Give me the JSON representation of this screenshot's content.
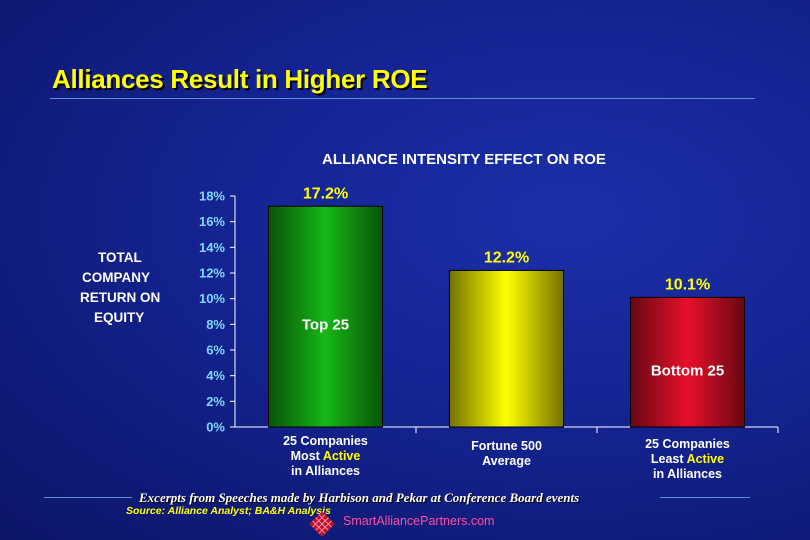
{
  "slide": {
    "title": "Alliances Result in Higher ROE",
    "excerpt": "Excerpts from Speeches made by Harbison and Pekar at Conference Board events",
    "source": "Source: Alliance Analyst; BA&H Analysis",
    "site": "SmartAlliancePartners.com"
  },
  "chart_data": {
    "type": "bar",
    "title": "ALLIANCE INTENSITY EFFECT ON ROE",
    "ylabel_lines": [
      "TOTAL",
      "COMPANY",
      "RETURN ON",
      "EQUITY"
    ],
    "xlabel": "",
    "ylim": [
      0,
      18
    ],
    "yticks": [
      "0%",
      "2%",
      "4%",
      "6%",
      "8%",
      "10%",
      "12%",
      "14%",
      "16%",
      "18%"
    ],
    "categories": [
      {
        "lines": [
          [
            "25 Companies"
          ],
          [
            "Most ",
            "Active"
          ],
          [
            "in Alliances"
          ]
        ]
      },
      {
        "lines": [
          [
            "Fortune 500"
          ],
          [
            "Average"
          ]
        ]
      },
      {
        "lines": [
          [
            "25 Companies"
          ],
          [
            "Least ",
            "Active"
          ],
          [
            "in Alliances"
          ]
        ]
      }
    ],
    "values": [
      17.2,
      12.2,
      10.1
    ],
    "value_labels": [
      "17.2%",
      "12.2%",
      "10.1%"
    ],
    "in_bar_labels": [
      "Top 25",
      "",
      "Bottom 25"
    ],
    "bar_colors": [
      "#16b816",
      "#ffff00",
      "#e8102a"
    ],
    "value_label_color": "#ffff00",
    "grid": false,
    "legend": "none"
  }
}
